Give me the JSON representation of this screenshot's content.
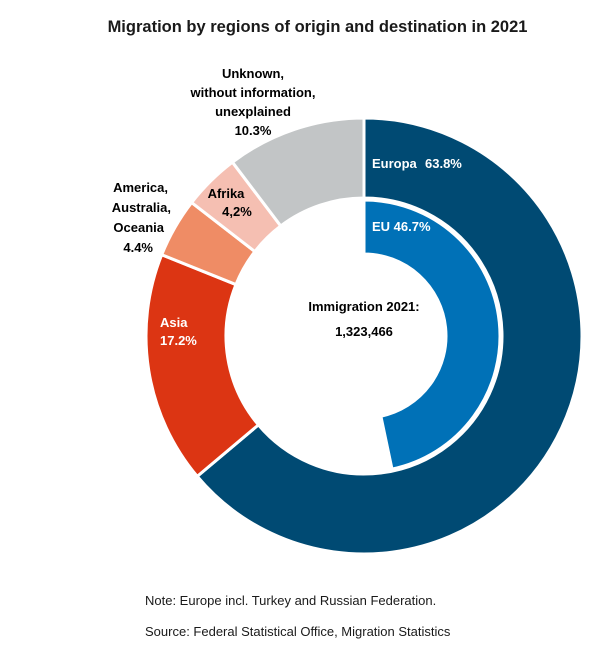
{
  "chart_data": {
    "type": "donut",
    "title": "Migration by regions of origin and destination in 2021",
    "center_label": "Immigration 2021:",
    "center_value": "1,323,466",
    "outer": [
      {
        "label": "Europa",
        "pct_text": "63.8%",
        "value": 63.8,
        "color": "#004a73"
      },
      {
        "label": "Asia",
        "pct_text": "17.2%",
        "value": 17.2,
        "color": "#dc3513"
      },
      {
        "label": "America, Australia, Oceania",
        "pct_text": "4.4%",
        "value": 4.4,
        "color": "#ef8c65"
      },
      {
        "label": "Afrika",
        "pct_text": "4,2%",
        "value": 4.2,
        "color": "#f5bfb2"
      },
      {
        "label": "Unknown, without information, unexplained",
        "pct_text": "10.3%",
        "value": 10.3,
        "color": "#c2c5c6"
      }
    ],
    "inner": [
      {
        "label": "EU",
        "pct_text": "46.7%",
        "value": 46.7,
        "color": "#0071b7"
      }
    ]
  },
  "notes": [
    "Note: Europe incl. Turkey and Russian Federation.",
    "Source: Federal Statistical Office, Migration Statistics"
  ],
  "labels": {
    "europa": "Europa",
    "europa_pct": "63.8%",
    "eu": "EU 46.7%",
    "asia": "Asia",
    "asia_pct": "17.2%",
    "america": [
      "America,",
      "Australia,",
      "Oceania",
      "4.4%"
    ],
    "afrika": [
      "Afrika",
      "4,2%"
    ],
    "unknown": [
      "Unknown,",
      "without information,",
      "unexplained",
      "10.3%"
    ]
  }
}
